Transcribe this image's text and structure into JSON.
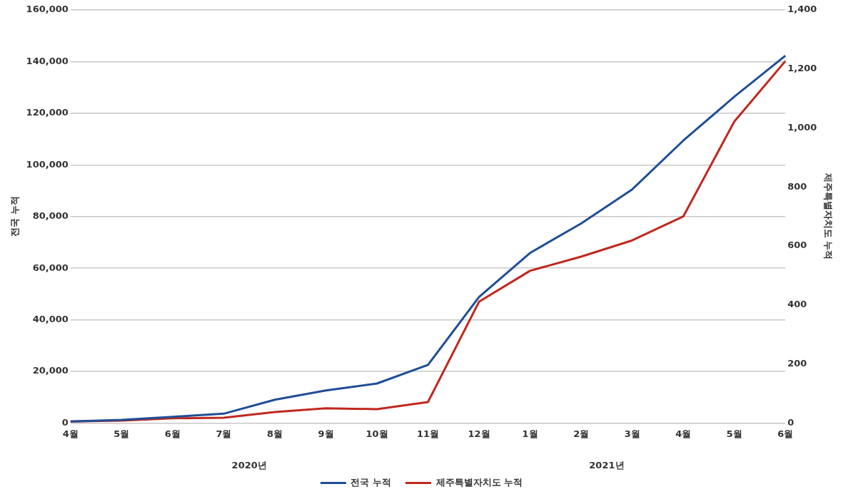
{
  "chart_data": {
    "type": "line",
    "ylabel": "전국 누적",
    "y2label": "제주특별자치도 누적",
    "categories": [
      "4월",
      "5월",
      "6월",
      "7월",
      "8월",
      "9월",
      "10월",
      "11월",
      "12월",
      "1월",
      "2월",
      "3월",
      "4월",
      "5월",
      "6월"
    ],
    "series": [
      {
        "name": "전국 누적",
        "color": "#1f4e96",
        "values": [
          600,
          1200,
          2400,
          3600,
          9000,
          12600,
          15300,
          22500,
          48800,
          65900,
          77300,
          90500,
          109400,
          126400,
          142300
        ]
      },
      {
        "name": "제주특별자치도 누적",
        "color": "#c0281e",
        "axis": "y2",
        "values": [
          5,
          8,
          16,
          18,
          37,
          50,
          47,
          71,
          411,
          516,
          564,
          619,
          700,
          1022,
          1227
        ]
      }
    ],
    "ylim": [
      0,
      160000
    ],
    "yticks": [
      {
        "value": 0,
        "label": "0"
      },
      {
        "value": 20000,
        "label": "20,000"
      },
      {
        "value": 40000,
        "label": "40,000"
      },
      {
        "value": 60000,
        "label": "60,000"
      },
      {
        "value": 80000,
        "label": "80,000"
      },
      {
        "value": 100000,
        "label": "100,000"
      },
      {
        "value": 120000,
        "label": "120,000"
      },
      {
        "value": 140000,
        "label": "140,000"
      },
      {
        "value": 160000,
        "label": "160,000"
      }
    ],
    "y2lim": [
      0,
      1400
    ],
    "y2ticks": [
      {
        "value": 0,
        "label": "0"
      },
      {
        "value": 200,
        "label": "200"
      },
      {
        "value": 400,
        "label": "400"
      },
      {
        "value": 600,
        "label": "600"
      },
      {
        "value": 800,
        "label": "800"
      },
      {
        "value": 1000,
        "label": "1,000"
      },
      {
        "value": 1200,
        "label": "1,200"
      },
      {
        "value": 1400,
        "label": "1,400"
      }
    ],
    "annotations": [
      "2020년",
      "2021년"
    ],
    "grid": "y",
    "legend": "bottom",
    "marker": "none",
    "line_style": "solid"
  }
}
